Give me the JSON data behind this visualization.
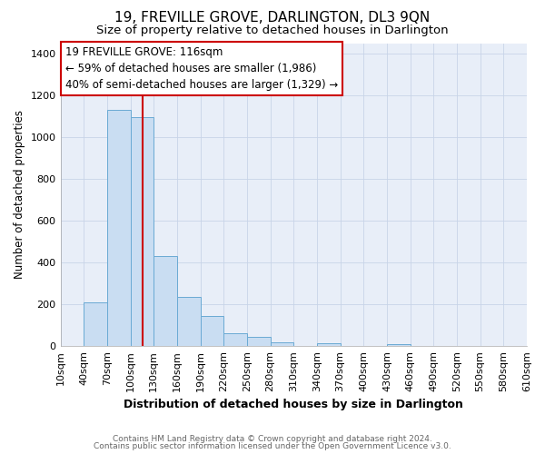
{
  "title": "19, FREVILLE GROVE, DARLINGTON, DL3 9QN",
  "subtitle": "Size of property relative to detached houses in Darlington",
  "xlabel": "Distribution of detached houses by size in Darlington",
  "ylabel": "Number of detached properties",
  "footer_line1": "Contains HM Land Registry data © Crown copyright and database right 2024.",
  "footer_line2": "Contains public sector information licensed under the Open Government Licence v3.0.",
  "annotation_title": "19 FREVILLE GROVE: 116sqm",
  "annotation_line1": "← 59% of detached houses are smaller (1,986)",
  "annotation_line2": "40% of semi-detached houses are larger (1,329) →",
  "bar_edges": [
    10,
    40,
    70,
    100,
    130,
    160,
    190,
    220,
    250,
    280,
    310,
    340,
    370,
    400,
    430,
    460,
    490,
    520,
    550,
    580,
    610
  ],
  "bar_heights": [
    0,
    210,
    1130,
    1095,
    430,
    235,
    145,
    60,
    45,
    20,
    0,
    15,
    0,
    0,
    10,
    0,
    0,
    0,
    0,
    0
  ],
  "bar_color": "#c9ddf2",
  "bar_edgecolor": "#6aaad4",
  "vline_x": 116,
  "vline_color": "#cc0000",
  "ylim": [
    0,
    1450
  ],
  "yticks": [
    0,
    200,
    400,
    600,
    800,
    1000,
    1200,
    1400
  ],
  "grid_color": "#c8d4e8",
  "plot_bg_color": "#e8eef8",
  "fig_bg_color": "#ffffff",
  "title_fontsize": 11,
  "subtitle_fontsize": 9.5,
  "ylabel_fontsize": 8.5,
  "xlabel_fontsize": 9,
  "annotation_fontsize": 8.5,
  "annotation_box_facecolor": "#ffffff",
  "annotation_box_edgecolor": "#cc0000",
  "tick_fontsize": 7.5,
  "ytick_fontsize": 8,
  "footer_fontsize": 6.5,
  "footer_color": "#666666"
}
